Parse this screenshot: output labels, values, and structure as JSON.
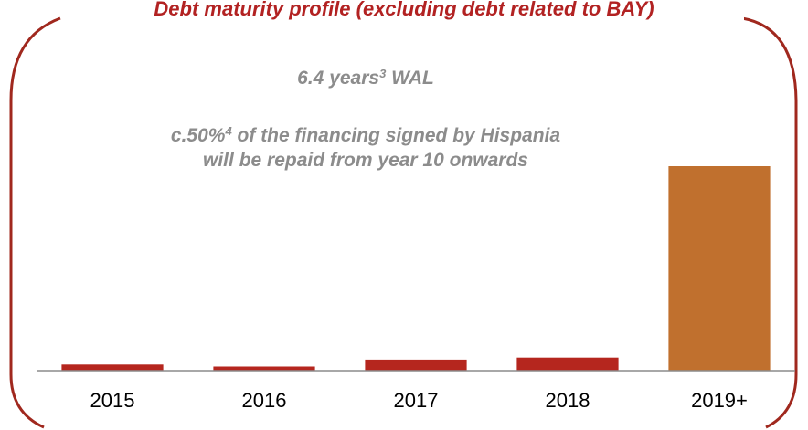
{
  "header": {
    "title": "Debt maturity profile (excluding debt related to BAY)"
  },
  "annotations": {
    "wal_value": "6.4 years",
    "wal_footnote": "3",
    "wal_suffix": " WAL",
    "financing_prefix": "c.50%",
    "financing_footnote": "4",
    "financing_suffix": " of the financing signed by Hispania",
    "financing_line2": "will be repaid from year 10 onwards"
  },
  "colors": {
    "frame": "#a0281e",
    "bar_regular": "#b5261e",
    "bar_highlight": "#c0702e",
    "axis": "#8c8c8c"
  },
  "chart_data": {
    "type": "bar",
    "title": "Debt maturity profile (excluding debt related to BAY)",
    "xlabel": "",
    "ylabel": "",
    "categories": [
      "2015",
      "2016",
      "2017",
      "2018",
      "2019+"
    ],
    "values": [
      1.5,
      1.0,
      2.7,
      3.2,
      50.0
    ],
    "highlight_index": 4,
    "ylim": [
      0,
      50
    ],
    "grid": false,
    "legend": "none"
  }
}
